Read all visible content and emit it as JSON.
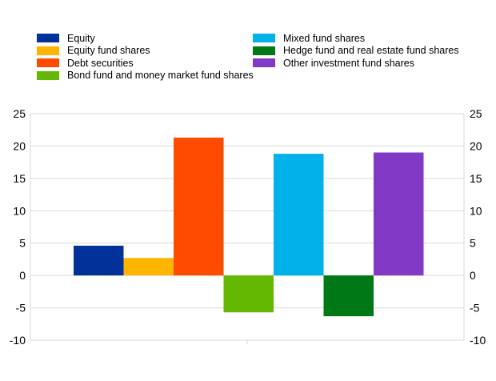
{
  "chart_data": {
    "type": "bar",
    "series": [
      {
        "name": "Equity",
        "value": 4.6,
        "color": "#003299"
      },
      {
        "name": "Equity fund shares",
        "value": 2.7,
        "color": "#ffb400"
      },
      {
        "name": "Debt securities",
        "value": 21.3,
        "color": "#ff4b00"
      },
      {
        "name": "Bond fund and money market fund shares",
        "value": -5.7,
        "color": "#65b800"
      },
      {
        "name": "Mixed fund shares",
        "value": 18.8,
        "color": "#00b1ea"
      },
      {
        "name": "Hedge fund and real estate fund shares",
        "value": -6.3,
        "color": "#007816"
      },
      {
        "name": "Other investment fund shares",
        "value": 19.0,
        "color": "#8139c6"
      }
    ],
    "ylim": [
      -10,
      25
    ],
    "yticks": [
      "25",
      "20",
      "15",
      "10",
      "5",
      "0",
      "-5",
      "-10"
    ],
    "grid": true,
    "legend_position": "top"
  }
}
